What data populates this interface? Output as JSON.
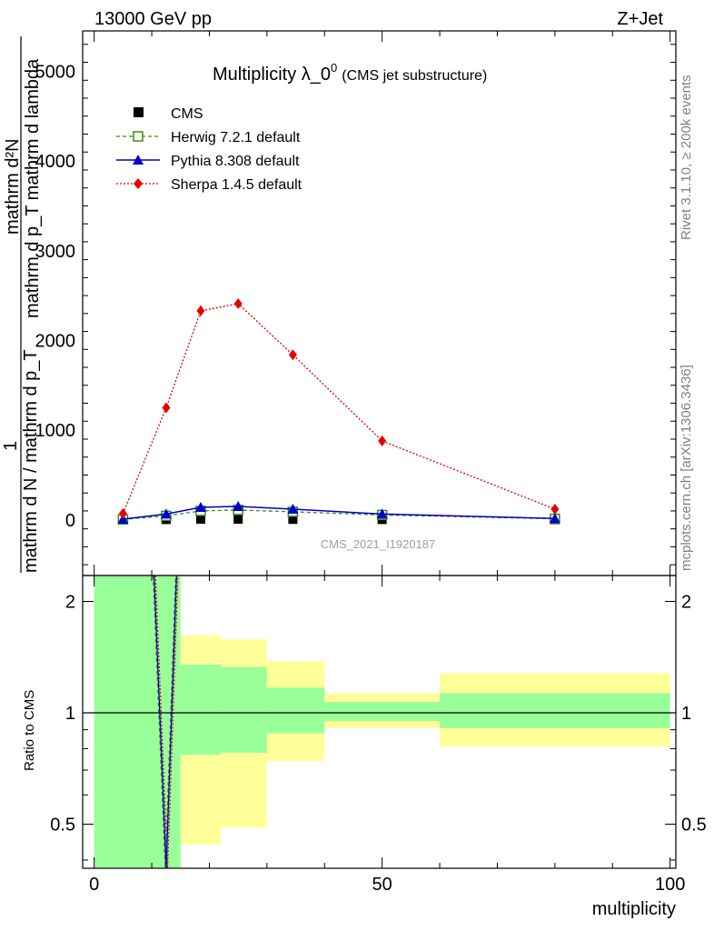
{
  "header": {
    "energy": "13000 GeV pp",
    "process": "Z+Jet"
  },
  "side_labels": {
    "rivet": "Rivet 3.1.10, ≥ 200k events",
    "mcplots": "mcplots.cern.ch [arXiv:1306.3436]"
  },
  "watermark": "CMS_2021_I1920187",
  "chart_data": [
    {
      "type": "line",
      "panel": "main",
      "title_main": "Multiplicity λ_0",
      "title_sup": "0",
      "title_sub": "(CMS jet substructure)",
      "ylabel_num": "mathrm d²N",
      "ylabel_num_line2": "mathrm d p_T  mathrm d lambda",
      "ylabel_num_T": "T",
      "ylabel_one": "1",
      "ylabel_den": "mathrm d N / mathrm d p_T",
      "xlim": [
        -2,
        101
      ],
      "ylim": [
        -620,
        5450
      ],
      "yticks": [
        0,
        1000,
        2000,
        3000,
        4000,
        5000
      ],
      "ytick_labels": [
        "0",
        "1000",
        "2000",
        "3000",
        "4000",
        "5000"
      ],
      "series": [
        {
          "name": "CMS",
          "style": "data",
          "color": "#000000",
          "x": [
            5,
            12.5,
            18.5,
            25,
            34.5,
            50,
            80
          ],
          "y": [
            4,
            4,
            8,
            8,
            6,
            4,
            2
          ]
        },
        {
          "name": "Herwig 7.2.1 default",
          "style": "dashed-open-square",
          "color": "#3c8c14",
          "x": [
            5,
            12.5,
            18.5,
            25,
            34.5,
            50,
            80
          ],
          "y": [
            5,
            45,
            100,
            110,
            90,
            55,
            12
          ]
        },
        {
          "name": "Pythia 8.308 default",
          "style": "solid-triangle",
          "color": "#0000cc",
          "x": [
            5,
            12.5,
            18.5,
            25,
            34.5,
            50,
            80
          ],
          "y": [
            8,
            65,
            140,
            150,
            120,
            65,
            15
          ]
        },
        {
          "name": "Sherpa 1.4.5 default",
          "style": "dotted-diamond",
          "color": "#e60000",
          "x": [
            5,
            12.5,
            18.5,
            25,
            34.5,
            50,
            80
          ],
          "y": [
            70,
            1250,
            2330,
            2410,
            1840,
            880,
            120
          ],
          "yerr": [
            0,
            30,
            60,
            40,
            30,
            20,
            0
          ]
        }
      ]
    },
    {
      "type": "area",
      "panel": "ratio",
      "ylabel": "Ratio to CMS",
      "xlabel": "multiplicity",
      "xlim": [
        -2,
        101
      ],
      "ylim": [
        0.38,
        2.35
      ],
      "yticks": [
        0.5,
        1,
        2
      ],
      "ytick_labels": [
        "0.5",
        "1",
        "2"
      ],
      "xticks": [
        0,
        50,
        100
      ],
      "xtick_labels": [
        "0",
        "50",
        "100"
      ],
      "bins": [
        {
          "x0": 0,
          "x1": 10,
          "stat_lo": 0.0,
          "stat_hi": 9.0,
          "tot_lo": 0.0,
          "tot_hi": 9.0
        },
        {
          "x0": 10,
          "x1": 15,
          "stat_lo": 0.0,
          "stat_hi": 9.0,
          "tot_lo": 0.0,
          "tot_hi": 9.0
        },
        {
          "x0": 15,
          "x1": 22,
          "stat_lo": 0.77,
          "stat_hi": 1.35,
          "tot_lo": 0.44,
          "tot_hi": 1.62
        },
        {
          "x0": 22,
          "x1": 30,
          "stat_lo": 0.78,
          "stat_hi": 1.33,
          "tot_lo": 0.49,
          "tot_hi": 1.58
        },
        {
          "x0": 30,
          "x1": 40,
          "stat_lo": 0.88,
          "stat_hi": 1.17,
          "tot_lo": 0.74,
          "tot_hi": 1.38
        },
        {
          "x0": 40,
          "x1": 60,
          "stat_lo": 0.95,
          "stat_hi": 1.07,
          "tot_lo": 0.91,
          "tot_hi": 1.13
        },
        {
          "x0": 60,
          "x1": 100,
          "stat_lo": 0.91,
          "stat_hi": 1.13,
          "tot_lo": 0.81,
          "tot_hi": 1.28
        }
      ],
      "mc_spike": {
        "x_left": 10.4,
        "x_mid": 12.5,
        "x_right": 14.3,
        "y_bottom": 0.38
      },
      "colors": {
        "stat": "#99ff99",
        "total": "#ffff99"
      }
    }
  ]
}
